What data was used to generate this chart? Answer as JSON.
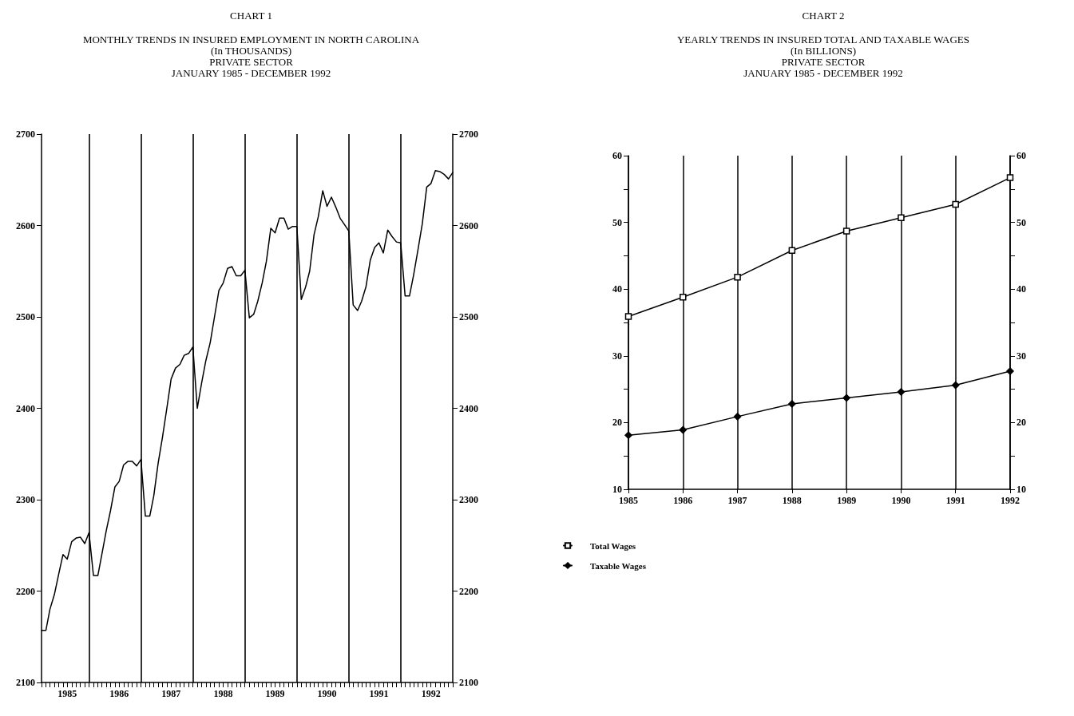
{
  "chart_data": [
    {
      "type": "line",
      "title": "CHART 1",
      "subtitle": "MONTHLY TRENDS IN INSURED EMPLOYMENT IN NORTH CAROLINA\n(In THOUSANDS)\nPRIVATE SECTOR\nJANUARY 1985 - DECEMBER 1992",
      "x": [
        "1985-01",
        "1985-02",
        "1985-03",
        "1985-04",
        "1985-05",
        "1985-06",
        "1985-07",
        "1985-08",
        "1985-09",
        "1985-10",
        "1985-11",
        "1985-12",
        "1986-01",
        "1986-02",
        "1986-03",
        "1986-04",
        "1986-05",
        "1986-06",
        "1986-07",
        "1986-08",
        "1986-09",
        "1986-10",
        "1986-11",
        "1986-12",
        "1987-01",
        "1987-02",
        "1987-03",
        "1987-04",
        "1987-05",
        "1987-06",
        "1987-07",
        "1987-08",
        "1987-09",
        "1987-10",
        "1987-11",
        "1987-12",
        "1988-01",
        "1988-02",
        "1988-03",
        "1988-04",
        "1988-05",
        "1988-06",
        "1988-07",
        "1988-08",
        "1988-09",
        "1988-10",
        "1988-11",
        "1988-12",
        "1989-01",
        "1989-02",
        "1989-03",
        "1989-04",
        "1989-05",
        "1989-06",
        "1989-07",
        "1989-08",
        "1989-09",
        "1989-10",
        "1989-11",
        "1989-12",
        "1990-01",
        "1990-02",
        "1990-03",
        "1990-04",
        "1990-05",
        "1990-06",
        "1990-07",
        "1990-08",
        "1990-09",
        "1990-10",
        "1990-11",
        "1990-12",
        "1991-01",
        "1991-02",
        "1991-03",
        "1991-04",
        "1991-05",
        "1991-06",
        "1991-07",
        "1991-08",
        "1991-09",
        "1991-10",
        "1991-11",
        "1991-12",
        "1992-01",
        "1992-02",
        "1992-03",
        "1992-04",
        "1992-05",
        "1992-06",
        "1992-07",
        "1992-08",
        "1992-09",
        "1992-10",
        "1992-11",
        "1992-12"
      ],
      "series": [
        {
          "color": "#000000",
          "values": [
            2157,
            2157,
            2180,
            2196,
            2218,
            2240,
            2235,
            2254,
            2258,
            2259,
            2252,
            2264,
            2217,
            2217,
            2240,
            2266,
            2288,
            2314,
            2320,
            2338,
            2342,
            2342,
            2337,
            2344,
            2282,
            2282,
            2304,
            2340,
            2368,
            2400,
            2432,
            2444,
            2448,
            2458,
            2460,
            2467,
            2400,
            2428,
            2452,
            2472,
            2500,
            2529,
            2537,
            2553,
            2555,
            2545,
            2545,
            2551,
            2499,
            2503,
            2517,
            2537,
            2561,
            2597,
            2592,
            2608,
            2608,
            2596,
            2599,
            2599,
            2519,
            2533,
            2550,
            2590,
            2610,
            2638,
            2621,
            2631,
            2620,
            2608,
            2601,
            2594,
            2513,
            2507,
            2517,
            2533,
            2562,
            2576,
            2581,
            2570,
            2595,
            2588,
            2582,
            2581,
            2523,
            2523,
            2546,
            2574,
            2602,
            2642,
            2646,
            2660,
            2659,
            2656,
            2651,
            2658
          ]
        }
      ],
      "xlim": [
        "1985-01",
        "1992-12"
      ],
      "xticks": [
        {
          "value": "1985-01",
          "label": null
        },
        {
          "value": "1985-02",
          "label": null
        },
        {
          "value": "1985-03",
          "label": null
        },
        {
          "value": "1985-04",
          "label": null
        },
        {
          "value": "1985-05",
          "label": null
        },
        {
          "value": "1985-06",
          "label": null
        },
        {
          "value": "1985-07",
          "label": "1985"
        },
        {
          "value": "1985-08",
          "label": null
        },
        {
          "value": "1985-09",
          "label": null
        },
        {
          "value": "1985-10",
          "label": null
        },
        {
          "value": "1985-11",
          "label": null
        },
        {
          "value": "1985-12",
          "label": null
        },
        {
          "value": "1986-01",
          "label": null
        },
        {
          "value": "1986-02",
          "label": null
        },
        {
          "value": "1986-03",
          "label": null
        },
        {
          "value": "1986-04",
          "label": null
        },
        {
          "value": "1986-05",
          "label": null
        },
        {
          "value": "1986-06",
          "label": null
        },
        {
          "value": "1986-07",
          "label": "1986"
        },
        {
          "value": "1986-08",
          "label": null
        },
        {
          "value": "1986-09",
          "label": null
        },
        {
          "value": "1986-10",
          "label": null
        },
        {
          "value": "1986-11",
          "label": null
        },
        {
          "value": "1986-12",
          "label": null
        },
        {
          "value": "1987-01",
          "label": null
        },
        {
          "value": "1987-02",
          "label": null
        },
        {
          "value": "1987-03",
          "label": null
        },
        {
          "value": "1987-04",
          "label": null
        },
        {
          "value": "1987-05",
          "label": null
        },
        {
          "value": "1987-06",
          "label": null
        },
        {
          "value": "1987-07",
          "label": "1987"
        },
        {
          "value": "1987-08",
          "label": null
        },
        {
          "value": "1987-09",
          "label": null
        },
        {
          "value": "1987-10",
          "label": null
        },
        {
          "value": "1987-11",
          "label": null
        },
        {
          "value": "1987-12",
          "label": null
        },
        {
          "value": "1988-01",
          "label": null
        },
        {
          "value": "1988-02",
          "label": null
        },
        {
          "value": "1988-03",
          "label": null
        },
        {
          "value": "1988-04",
          "label": null
        },
        {
          "value": "1988-05",
          "label": null
        },
        {
          "value": "1988-06",
          "label": null
        },
        {
          "value": "1988-07",
          "label": "1988"
        },
        {
          "value": "1988-08",
          "label": null
        },
        {
          "value": "1988-09",
          "label": null
        },
        {
          "value": "1988-10",
          "label": null
        },
        {
          "value": "1988-11",
          "label": null
        },
        {
          "value": "1988-12",
          "label": null
        },
        {
          "value": "1989-01",
          "label": null
        },
        {
          "value": "1989-02",
          "label": null
        },
        {
          "value": "1989-03",
          "label": null
        },
        {
          "value": "1989-04",
          "label": null
        },
        {
          "value": "1989-05",
          "label": null
        },
        {
          "value": "1989-06",
          "label": null
        },
        {
          "value": "1989-07",
          "label": "1989"
        },
        {
          "value": "1989-08",
          "label": null
        },
        {
          "value": "1989-09",
          "label": null
        },
        {
          "value": "1989-10",
          "label": null
        },
        {
          "value": "1989-11",
          "label": null
        },
        {
          "value": "1989-12",
          "label": null
        },
        {
          "value": "1990-01",
          "label": null
        },
        {
          "value": "1990-02",
          "label": null
        },
        {
          "value": "1990-03",
          "label": null
        },
        {
          "value": "1990-04",
          "label": null
        },
        {
          "value": "1990-05",
          "label": null
        },
        {
          "value": "1990-06",
          "label": null
        },
        {
          "value": "1990-07",
          "label": "1990"
        },
        {
          "value": "1990-08",
          "label": null
        },
        {
          "value": "1990-09",
          "label": null
        },
        {
          "value": "1990-10",
          "label": null
        },
        {
          "value": "1990-11",
          "label": null
        },
        {
          "value": "1990-12",
          "label": null
        },
        {
          "value": "1991-01",
          "label": null
        },
        {
          "value": "1991-02",
          "label": null
        },
        {
          "value": "1991-03",
          "label": null
        },
        {
          "value": "1991-04",
          "label": null
        },
        {
          "value": "1991-05",
          "label": null
        },
        {
          "value": "1991-06",
          "label": null
        },
        {
          "value": "1991-07",
          "label": "1991"
        },
        {
          "value": "1991-08",
          "label": null
        },
        {
          "value": "1991-09",
          "label": null
        },
        {
          "value": "1991-10",
          "label": null
        },
        {
          "value": "1991-11",
          "label": null
        },
        {
          "value": "1991-12",
          "label": null
        },
        {
          "value": "1992-01",
          "label": null
        },
        {
          "value": "1992-02",
          "label": null
        },
        {
          "value": "1992-03",
          "label": null
        },
        {
          "value": "1992-04",
          "label": null
        },
        {
          "value": "1992-05",
          "label": null
        },
        {
          "value": "1992-06",
          "label": null
        },
        {
          "value": "1992-07",
          "label": "1992"
        },
        {
          "value": "1992-08",
          "label": null
        },
        {
          "value": "1992-09",
          "label": null
        },
        {
          "value": "1992-10",
          "label": null
        },
        {
          "value": "1992-11",
          "label": null
        },
        {
          "value": "1992-12",
          "label": null
        }
      ],
      "ylim": [
        2100,
        2700
      ],
      "yticks": [
        2100,
        2200,
        2300,
        2400,
        2500,
        2600,
        2700
      ],
      "y2lim": [
        2100,
        2700
      ],
      "y2ticks": [
        2100,
        2200,
        2300,
        2400,
        2500,
        2600,
        2700
      ],
      "ref_lines": [
        {
          "axis": "x",
          "value": "1985-12",
          "color": "#000000"
        },
        {
          "axis": "x",
          "value": "1986-12",
          "color": "#000000"
        },
        {
          "axis": "x",
          "value": "1987-12",
          "color": "#000000"
        },
        {
          "axis": "x",
          "value": "1988-12",
          "color": "#000000"
        },
        {
          "axis": "x",
          "value": "1989-12",
          "color": "#000000"
        },
        {
          "axis": "x",
          "value": "1990-12",
          "color": "#000000"
        },
        {
          "axis": "x",
          "value": "1991-12",
          "color": "#000000"
        }
      ],
      "marker": "none",
      "grid": false,
      "legend": false
    },
    {
      "type": "line",
      "title": "CHART 2",
      "subtitle": "YEARLY TRENDS IN INSURED TOTAL AND TAXABLE WAGES\n(In BILLIONS)\nPRIVATE SECTOR\nJANUARY 1985 - DECEMBER 1992",
      "categories": [
        "1985",
        "1986",
        "1987",
        "1988",
        "1989",
        "1990",
        "1991",
        "1992"
      ],
      "series": [
        {
          "name": "Total Wages",
          "color": "#000000",
          "marker": "square",
          "values": [
            35.9,
            38.8,
            41.8,
            45.8,
            48.7,
            50.7,
            52.7,
            56.7
          ]
        },
        {
          "name": "Taxable Wages",
          "color": "#000000",
          "marker": "diamond",
          "values": [
            18.1,
            18.9,
            20.9,
            22.8,
            23.7,
            24.6,
            25.6,
            27.7
          ]
        }
      ],
      "ylim": [
        10,
        60
      ],
      "yticks": [
        10,
        {
          "value": 15,
          "label": null
        },
        20,
        {
          "value": 25,
          "label": null
        },
        30,
        {
          "value": 35,
          "label": null
        },
        40,
        {
          "value": 45,
          "label": null
        },
        50,
        {
          "value": 55,
          "label": null
        },
        60
      ],
      "y2lim": [
        10,
        60
      ],
      "y2ticks": [
        10,
        {
          "value": 15,
          "label": null
        },
        20,
        {
          "value": 25,
          "label": null
        },
        30,
        {
          "value": 35,
          "label": null
        },
        40,
        {
          "value": 45,
          "label": null
        },
        50,
        {
          "value": 55,
          "label": null
        },
        60
      ],
      "grid": "x",
      "legend": "bottom left"
    }
  ]
}
